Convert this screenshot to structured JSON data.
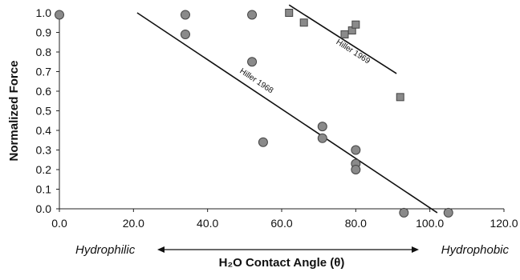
{
  "chart_data": {
    "type": "scatter",
    "xlabel": "H₂O Contact Angle (θ)",
    "ylabel": "Normalized Force",
    "xlim": [
      0,
      120
    ],
    "ylim": [
      0,
      1.0
    ],
    "x_ticks": [
      "0.0",
      "20.0",
      "40.0",
      "60.0",
      "80.0",
      "100.0",
      "120.0"
    ],
    "y_ticks": [
      "0.0",
      "0.1",
      "0.2",
      "0.3",
      "0.4",
      "0.5",
      "0.6",
      "0.7",
      "0.8",
      "0.9",
      "1.0"
    ],
    "grid": false,
    "annotations": {
      "left": "Hydrophilic",
      "right": "Hydrophobic"
    },
    "series": [
      {
        "name": "Hiller 1968",
        "marker": "circle",
        "color": "#8a8a8a",
        "points": [
          [
            0,
            0.99
          ],
          [
            34,
            0.99
          ],
          [
            34,
            0.89
          ],
          [
            52,
            0.99
          ],
          [
            52,
            0.75
          ],
          [
            55,
            0.34
          ],
          [
            71,
            0.42
          ],
          [
            71,
            0.36
          ],
          [
            80,
            0.3
          ],
          [
            80,
            0.23
          ],
          [
            80,
            0.2
          ],
          [
            93,
            -0.02
          ],
          [
            105,
            -0.02
          ]
        ],
        "fit": {
          "from": [
            21,
            1.0
          ],
          "to": [
            102,
            -0.02
          ]
        }
      },
      {
        "name": "Hiller 1969",
        "marker": "square",
        "color": "#8a8a8a",
        "points": [
          [
            62,
            1.0
          ],
          [
            66,
            0.95
          ],
          [
            77,
            0.89
          ],
          [
            79,
            0.91
          ],
          [
            80,
            0.94
          ],
          [
            92,
            0.57
          ]
        ],
        "fit": {
          "from": [
            62,
            1.04
          ],
          "to": [
            91,
            0.69
          ]
        }
      }
    ]
  }
}
